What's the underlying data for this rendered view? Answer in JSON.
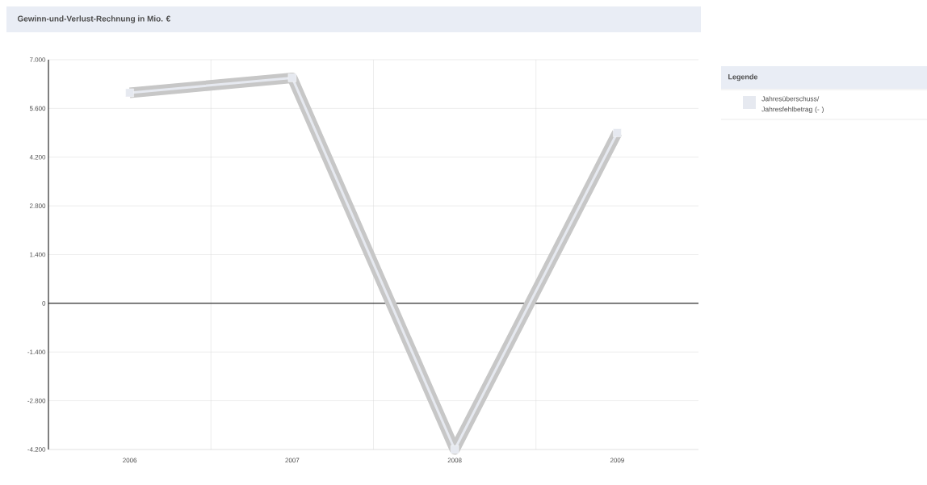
{
  "chart_data": {
    "type": "line",
    "title": "Gewinn-und-Verlust-Rechnung in Mio. €",
    "categories": [
      "2006",
      "2007",
      "2008",
      "2009"
    ],
    "series": [
      {
        "name": "Jahresüberschuss/ Jahresfehlbetrag (- )",
        "color": "#e6e9f0",
        "values": [
          6050,
          6480,
          -4200,
          4900
        ]
      }
    ],
    "ylim": [
      -4200,
      7000
    ],
    "yticks": [
      {
        "value": -4200,
        "label": "-4.200"
      },
      {
        "value": -2800,
        "label": "-2.800"
      },
      {
        "value": -1400,
        "label": "-1.400"
      },
      0,
      {
        "value": 1400,
        "label": "1.400"
      },
      {
        "value": 2800,
        "label": "2.800"
      },
      {
        "value": 4200,
        "label": "4.200"
      },
      {
        "value": 5600,
        "label": "5.600"
      },
      {
        "value": 7000,
        "label": "7.000"
      }
    ],
    "ref_lines": [
      {
        "axis": "y",
        "value": 0,
        "color": "#000000"
      }
    ],
    "grid": true,
    "legend": "top right",
    "legend_title": "Legende",
    "marker": "square",
    "line_style": "solid"
  }
}
